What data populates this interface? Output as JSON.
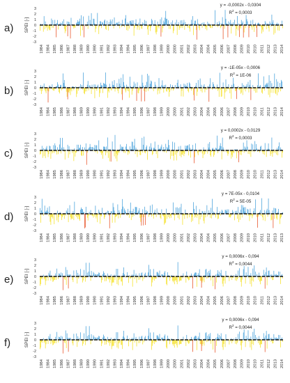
{
  "chart_data": [
    {
      "type": "bar",
      "panel_label": "a)",
      "ylabel": "SPEI [-]",
      "ylim": [
        -3,
        3
      ],
      "yticks": [
        -3,
        -2,
        -1,
        0,
        1,
        2,
        3
      ],
      "xticks": [
        "1984",
        "1984",
        "1985",
        "1986",
        "1987",
        "1988",
        "1989",
        "1990",
        "1990",
        "1991",
        "1992",
        "1993",
        "1994",
        "1994",
        "1995",
        "1996",
        "1997",
        "1998",
        "1999",
        "2000",
        "2000",
        "2001",
        "2002",
        "2003",
        "2004",
        "2004",
        "2005",
        "2006",
        "2007",
        "2008",
        "2009",
        "2010",
        "2010",
        "2011",
        "2012",
        "2013",
        "2014"
      ],
      "trend_equation": "y = -0,0002x - 0,0304",
      "r_squared_label": "R",
      "r_squared_value": " = 0,0003",
      "colors": {
        "positive": "#4aa3dc",
        "negative": "#f5e12a",
        "extreme": "#e8542a",
        "trend": "#111111"
      },
      "seed": 11
    },
    {
      "type": "bar",
      "panel_label": "b)",
      "ylabel": "SPEI [-]",
      "ylim": [
        -3,
        3
      ],
      "yticks": [
        -3,
        -2,
        -1,
        0,
        1,
        2,
        3
      ],
      "xticks": [
        "1984",
        "1984",
        "1985",
        "1986",
        "1987",
        "1988",
        "1989",
        "1990",
        "1990",
        "1991",
        "1992",
        "1993",
        "1994",
        "1994",
        "1995",
        "1996",
        "1997",
        "1998",
        "1999",
        "2000",
        "2000",
        "2001",
        "2002",
        "2003",
        "2004",
        "2004",
        "2005",
        "2006",
        "2007",
        "2008",
        "2009",
        "2010",
        "2010",
        "2011",
        "2012",
        "2013",
        "2014"
      ],
      "trend_equation": "y = -1E-05x - 0,0006",
      "r_squared_label": "R",
      "r_squared_value": " = 1E-06",
      "colors": {
        "positive": "#4aa3dc",
        "negative": "#f5e12a",
        "extreme": "#e8542a",
        "trend": "#111111"
      },
      "seed": 23
    },
    {
      "type": "bar",
      "panel_label": "c)",
      "ylabel": "SPEI [-]",
      "ylim": [
        -3,
        3
      ],
      "yticks": [
        -3,
        -2,
        -1,
        0,
        1,
        2,
        3
      ],
      "xticks": [
        "1984",
        "1984",
        "1985",
        "1986",
        "1987",
        "1988",
        "1989",
        "1990",
        "1990",
        "1991",
        "1992",
        "1993",
        "1994",
        "1994",
        "1995",
        "1996",
        "1997",
        "1998",
        "1999",
        "2000",
        "2000",
        "2001",
        "2002",
        "2003",
        "2004",
        "2004",
        "2005",
        "2006",
        "2007",
        "2008",
        "2009",
        "2010",
        "2010",
        "2011",
        "2012",
        "2013",
        "2014"
      ],
      "trend_equation": "y = 0,0002x - 0,0129",
      "r_squared_label": "R",
      "r_squared_value": " = 0,0003",
      "colors": {
        "positive": "#4aa3dc",
        "negative": "#f5e12a",
        "extreme": "#e8542a",
        "trend": "#111111"
      },
      "seed": 37
    },
    {
      "type": "bar",
      "panel_label": "d)",
      "ylabel": "SPEI [-]",
      "ylim": [
        -3,
        3
      ],
      "yticks": [
        -3,
        -2,
        -1,
        0,
        1,
        2,
        3
      ],
      "xticks": [
        "1984",
        "1984",
        "1985",
        "1986",
        "1987",
        "1988",
        "1989",
        "1990",
        "1990",
        "1991",
        "1992",
        "1993",
        "1994",
        "1994",
        "1995",
        "1996",
        "1997",
        "1998",
        "1999",
        "2000",
        "2000",
        "2001",
        "2002",
        "2003",
        "2004",
        "2004",
        "2005",
        "2006",
        "2007",
        "2008",
        "2009",
        "2010",
        "2010",
        "2011",
        "2012",
        "2013",
        "2013"
      ],
      "trend_equation": "y = 7E-05x - 0,0104",
      "r_squared_label": "R",
      "r_squared_value": " = 5E-05",
      "colors": {
        "positive": "#4aa3dc",
        "negative": "#f5e12a",
        "extreme": "#e8542a",
        "trend": "#111111"
      },
      "seed": 41
    },
    {
      "type": "bar",
      "panel_label": "e)",
      "ylabel": "SPEI [-]",
      "ylim": [
        -3,
        3
      ],
      "yticks": [
        -3,
        -2,
        -1,
        0,
        1,
        2,
        3
      ],
      "xticks": [
        "1984",
        "1984",
        "1985",
        "1986",
        "1987",
        "1988",
        "1989",
        "1990",
        "1990",
        "1991",
        "1992",
        "1993",
        "1994",
        "1994",
        "1995",
        "1996",
        "1997",
        "1998",
        "1999",
        "2000",
        "2000",
        "2001",
        "2002",
        "2003",
        "2004",
        "2004",
        "2005",
        "2006",
        "2007",
        "2008",
        "2009",
        "2010",
        "2010",
        "2011",
        "2012",
        "2013",
        "2014"
      ],
      "trend_equation": "y = 0,0006x - 0,094",
      "r_squared_label": "R",
      "r_squared_value": " = 0,0044",
      "colors": {
        "positive": "#4aa3dc",
        "negative": "#f5e12a",
        "extreme": "#e8542a",
        "trend": "#111111"
      },
      "seed": 53
    },
    {
      "type": "bar",
      "panel_label": "f)",
      "ylabel": "SPEI [-]",
      "ylim": [
        -3,
        3
      ],
      "yticks": [
        -3,
        -2,
        -1,
        0,
        1,
        2,
        3
      ],
      "xticks": [
        "1984",
        "1984",
        "1985",
        "1986",
        "1987",
        "1988",
        "1989",
        "1990",
        "1990",
        "1991",
        "1992",
        "1993",
        "1994",
        "1994",
        "1995",
        "1996",
        "1997",
        "1998",
        "1999",
        "2000",
        "2000",
        "2001",
        "2002",
        "2003",
        "2004",
        "2004",
        "2005",
        "2006",
        "2007",
        "2008",
        "2009",
        "2010",
        "2010",
        "2011",
        "2012",
        "2013",
        "2014"
      ],
      "trend_equation": "y = 0,0006x - 0,094",
      "r_squared_label": "R",
      "r_squared_value": " = 0,0044",
      "colors": {
        "positive": "#4aa3dc",
        "negative": "#f5e12a",
        "extreme": "#e8542a",
        "trend": "#111111"
      },
      "seed": 53
    }
  ]
}
